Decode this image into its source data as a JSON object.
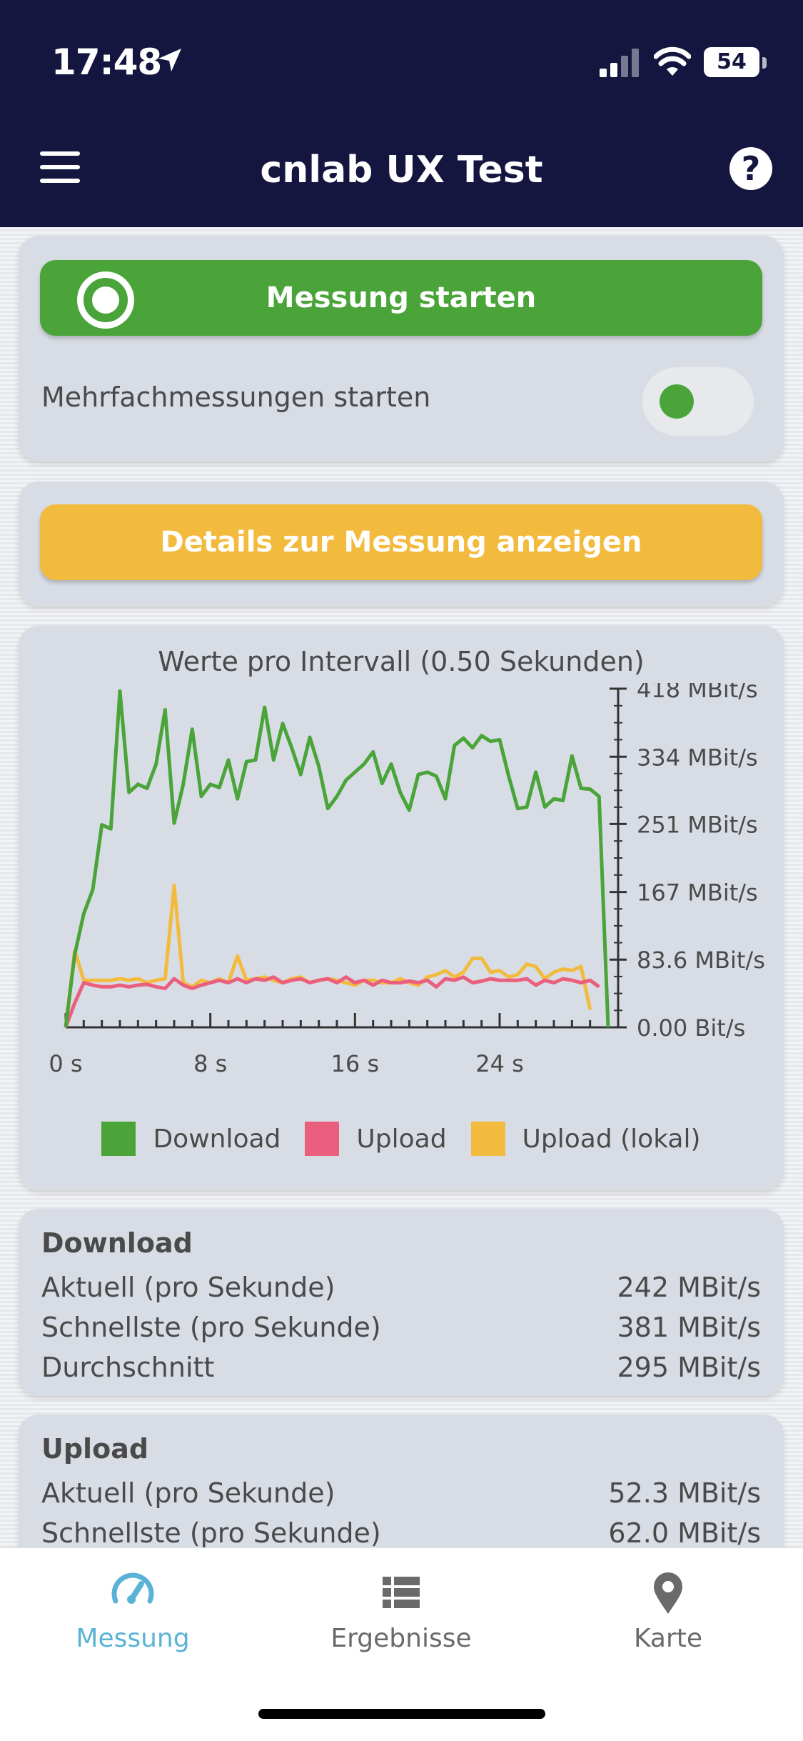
{
  "status_bar": {
    "time": "17:48",
    "battery": "54"
  },
  "header": {
    "title": "cnlab UX Test"
  },
  "start_card": {
    "button_label": "Messung starten",
    "multi_label": "Mehrfachmessungen starten",
    "multi_enabled": false
  },
  "details_card": {
    "button_label": "Details zur Messung anzeigen"
  },
  "chart_data": {
    "type": "line",
    "title": "Werte pro Intervall (0.50 Sekunden)",
    "x_ticks": [
      "0 s",
      "8 s",
      "16 s",
      "24 s"
    ],
    "x_tick_values": [
      0,
      8,
      16,
      24
    ],
    "xlim": [
      0,
      30
    ],
    "y_ticks": [
      "418 MBit/s",
      "334 MBit/s",
      "251 MBit/s",
      "167 MBit/s",
      "83.6 MBit/s",
      "0.00 Bit/s"
    ],
    "y_tick_values": [
      418,
      334,
      251,
      167,
      83.6,
      0
    ],
    "ylim": [
      0,
      418
    ],
    "series": [
      {
        "name": "Download",
        "color": "#4aa43a",
        "x": [
          0,
          0.5,
          1,
          1.5,
          2,
          2.5,
          3,
          3.5,
          4,
          4.5,
          5,
          5.5,
          6,
          6.5,
          7,
          7.5,
          8,
          8.5,
          9,
          9.5,
          10,
          10.5,
          11,
          11.5,
          12,
          12.5,
          13,
          13.5,
          14,
          14.5,
          15,
          15.5,
          16,
          16.5,
          17,
          17.5,
          18,
          18.5,
          19,
          19.5,
          20,
          20.5,
          21,
          21.5,
          22,
          22.5,
          23,
          23.5,
          24,
          24.5,
          25,
          25.5,
          26,
          26.5,
          27,
          27.5,
          28,
          28.5,
          29,
          29.5,
          30
        ],
        "values": [
          0,
          90,
          140,
          170,
          250,
          245,
          415,
          290,
          300,
          295,
          325,
          392,
          252,
          300,
          368,
          285,
          300,
          296,
          330,
          282,
          328,
          330,
          395,
          330,
          375,
          345,
          312,
          358,
          322,
          270,
          285,
          305,
          315,
          325,
          340,
          301,
          325,
          290,
          268,
          312,
          315,
          310,
          282,
          348,
          357,
          345,
          360,
          353,
          355,
          310,
          270,
          272,
          315,
          272,
          282,
          280,
          335,
          295,
          294,
          285,
          0
        ]
      },
      {
        "name": "Upload",
        "color": "#eb5f7e",
        "x": [
          0,
          0.5,
          1,
          1.5,
          2,
          2.5,
          3,
          3.5,
          4,
          4.5,
          5,
          5.5,
          6,
          6.5,
          7,
          7.5,
          8,
          8.5,
          9,
          9.5,
          10,
          10.5,
          11,
          11.5,
          12,
          12.5,
          13,
          13.5,
          14,
          14.5,
          15,
          15.5,
          16,
          16.5,
          17,
          17.5,
          18,
          18.5,
          19,
          19.5,
          20,
          20.5,
          21,
          21.5,
          22,
          22.5,
          23,
          23.5,
          24,
          24.5,
          25,
          25.5,
          26,
          26.5,
          27,
          27.5,
          28,
          28.5,
          29,
          29.5
        ],
        "values": [
          0,
          30,
          55,
          52,
          50,
          50,
          52,
          50,
          52,
          53,
          50,
          48,
          60,
          52,
          48,
          52,
          55,
          58,
          55,
          60,
          55,
          60,
          58,
          62,
          55,
          58,
          60,
          55,
          58,
          60,
          55,
          62,
          55,
          58,
          52,
          58,
          55,
          55,
          57,
          55,
          58,
          50,
          60,
          58,
          62,
          55,
          57,
          60,
          58,
          58,
          58,
          60,
          52,
          58,
          55,
          60,
          58,
          55,
          58,
          50
        ]
      },
      {
        "name": "Upload (lokal)",
        "color": "#f2bb3e",
        "x": [
          0,
          0.5,
          1,
          1.5,
          2,
          2.5,
          3,
          3.5,
          4,
          4.5,
          5,
          5.5,
          6,
          6.5,
          7,
          7.5,
          8,
          8.5,
          9,
          9.5,
          10,
          10.5,
          11,
          11.5,
          12,
          12.5,
          13,
          13.5,
          14,
          14.5,
          15,
          15.5,
          16,
          16.5,
          17,
          17.5,
          18,
          18.5,
          19,
          19.5,
          20,
          20.5,
          21,
          21.5,
          22,
          22.5,
          23,
          23.5,
          24,
          24.5,
          25,
          25.5,
          26,
          26.5,
          27,
          27.5,
          28,
          28.5,
          29
        ],
        "values": [
          0,
          95,
          58,
          58,
          58,
          58,
          60,
          58,
          60,
          55,
          58,
          60,
          175,
          55,
          50,
          58,
          55,
          60,
          55,
          88,
          58,
          60,
          62,
          58,
          55,
          60,
          62,
          55,
          58,
          60,
          58,
          55,
          52,
          58,
          58,
          55,
          55,
          60,
          55,
          52,
          62,
          65,
          70,
          62,
          68,
          85,
          85,
          68,
          70,
          62,
          65,
          78,
          75,
          60,
          68,
          72,
          70,
          75,
          22
        ]
      }
    ],
    "legend_position": "bottom",
    "grid": false
  },
  "download_stats": {
    "title": "Download",
    "rows": [
      {
        "label": "Aktuell (pro Sekunde)",
        "value": "242 MBit/s"
      },
      {
        "label": "Schnellste (pro Sekunde)",
        "value": "381 MBit/s"
      },
      {
        "label": "Durchschnitt",
        "value": "295 MBit/s"
      }
    ]
  },
  "upload_stats": {
    "title": "Upload",
    "rows": [
      {
        "label": "Aktuell (pro Sekunde)",
        "value": "52.3 MBit/s"
      },
      {
        "label": "Schnellste (pro Sekunde)",
        "value": "62.0 MBit/s"
      }
    ]
  },
  "tabbar": {
    "tabs": [
      {
        "label": "Messung",
        "icon": "speedometer-icon",
        "active": true
      },
      {
        "label": "Ergebnisse",
        "icon": "list-icon",
        "active": false
      },
      {
        "label": "Karte",
        "icon": "map-pin-icon",
        "active": false
      }
    ],
    "active_color": "#5ab3d6"
  }
}
